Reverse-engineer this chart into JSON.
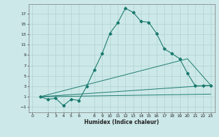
{
  "title": "",
  "xlabel": "Humidex (Indice chaleur)",
  "ylabel": "",
  "bg_color": "#cce8e8",
  "line_color": "#1a7a6e",
  "grid_color": "#aacccc",
  "x_ticks": [
    0,
    2,
    3,
    4,
    5,
    6,
    8,
    9,
    10,
    11,
    12,
    13,
    14,
    15,
    16,
    17,
    18,
    19,
    20,
    21,
    22,
    23
  ],
  "y_ticks": [
    -1,
    1,
    3,
    5,
    7,
    9,
    11,
    13,
    15,
    17
  ],
  "xlim": [
    -0.5,
    23.5
  ],
  "ylim": [
    -2.0,
    18.8
  ],
  "lines": [
    {
      "x": [
        1,
        2,
        3,
        4,
        5,
        6,
        7,
        8,
        9,
        10,
        11,
        12,
        13,
        14,
        15,
        16,
        17,
        18,
        19,
        20,
        21,
        22,
        23
      ],
      "y": [
        1.0,
        0.5,
        0.7,
        -0.7,
        0.5,
        0.3,
        3.0,
        6.2,
        9.3,
        13.2,
        15.2,
        18.0,
        17.2,
        15.5,
        15.3,
        13.2,
        10.2,
        9.3,
        8.3,
        5.5,
        3.1,
        3.1,
        3.2
      ],
      "marker": "D",
      "ms": 2.0,
      "lw": 0.8
    },
    {
      "x": [
        1,
        23
      ],
      "y": [
        1.0,
        3.2
      ],
      "marker": null,
      "ms": 0,
      "lw": 0.7
    },
    {
      "x": [
        1,
        20,
        23
      ],
      "y": [
        1.0,
        8.3,
        3.2
      ],
      "marker": null,
      "ms": 0,
      "lw": 0.7
    },
    {
      "x": [
        1,
        23
      ],
      "y": [
        1.0,
        1.5
      ],
      "marker": null,
      "ms": 0,
      "lw": 0.7
    }
  ]
}
